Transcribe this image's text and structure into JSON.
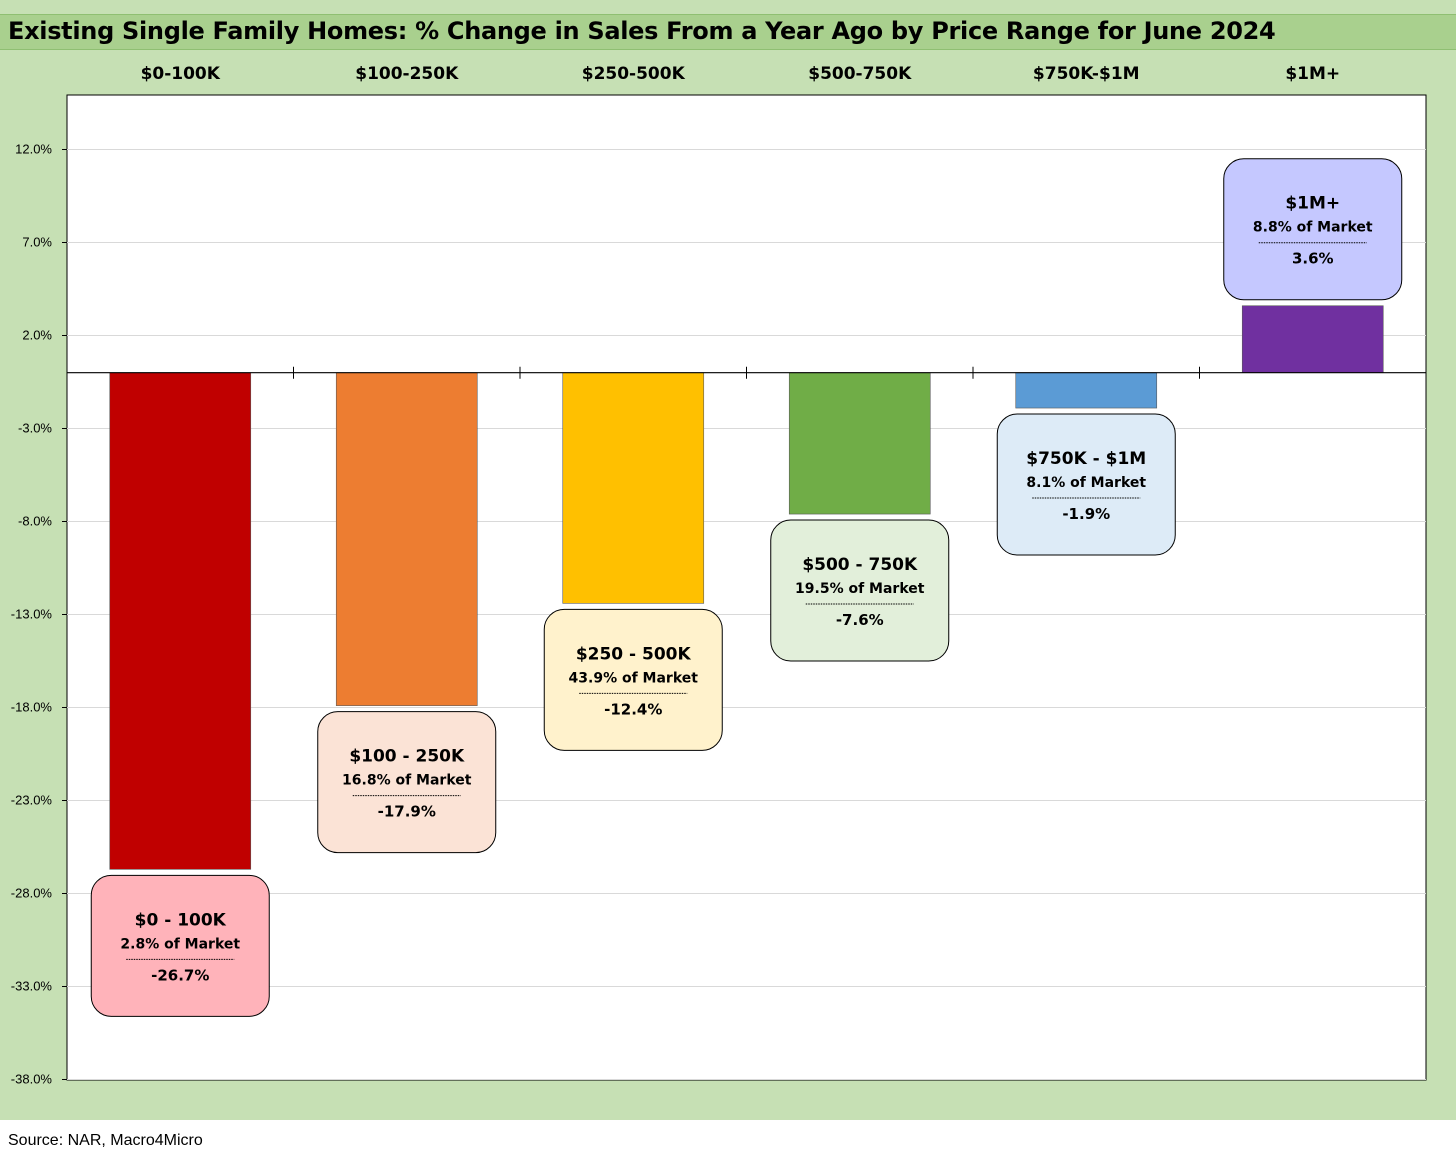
{
  "title": "Existing Single Family Homes: % Change in Sales From a Year Ago by Price Range for June 2024",
  "source": "Source:  NAR,  Macro4Micro",
  "chart_data": {
    "type": "bar",
    "title": "Existing Single Family Homes: % Change in Sales From a Year Ago by Price Range for June 2024",
    "xlabel": "",
    "ylabel": "",
    "categories": [
      "$0-100K",
      "$100-250K",
      "$250-500K",
      "$500-750K",
      "$750K-$1M",
      "$1M+"
    ],
    "values": [
      -26.7,
      -17.9,
      -12.4,
      -7.6,
      -1.9,
      3.6
    ],
    "unit": "%",
    "ylim": [
      -38.0,
      15.0
    ],
    "yticks": [
      12.0,
      7.0,
      2.0,
      -3.0,
      -8.0,
      -13.0,
      -18.0,
      -23.0,
      -28.0,
      -33.0,
      -38.0
    ],
    "ytick_labels": [
      "12.0%",
      "7.0%",
      "2.0%",
      "-3.0%",
      "-8.0%",
      "-13.0%",
      "-18.0%",
      "-23.0%",
      "-28.0%",
      "-33.0%",
      "-38.0%"
    ],
    "grid": true,
    "legend": "none",
    "bar_colors": [
      "#c00000",
      "#ed7d31",
      "#ffc000",
      "#70ad47",
      "#5b9bd5",
      "#7030a0"
    ],
    "annotations": [
      {
        "title": "$0 - 100K",
        "share": "2.8% of Market",
        "value": "-26.7%",
        "fill": "#ffb3ba"
      },
      {
        "title": "$100 - 250K",
        "share": "16.8% of Market",
        "value": "-17.9%",
        "fill": "#fbe3d6"
      },
      {
        "title": "$250 - 500K",
        "share": "43.9% of Market",
        "value": "-12.4%",
        "fill": "#fff2cc"
      },
      {
        "title": "$500 - 750K",
        "share": "19.5% of Market",
        "value": "-7.6%",
        "fill": "#e2efda"
      },
      {
        "title": "$750K - $1M",
        "share": "8.1% of Market",
        "value": "-1.9%",
        "fill": "#ddebf7"
      },
      {
        "title": "$1M+",
        "share": "8.8% of Market",
        "value": "3.6%",
        "fill": "#c5c8ff"
      }
    ]
  }
}
